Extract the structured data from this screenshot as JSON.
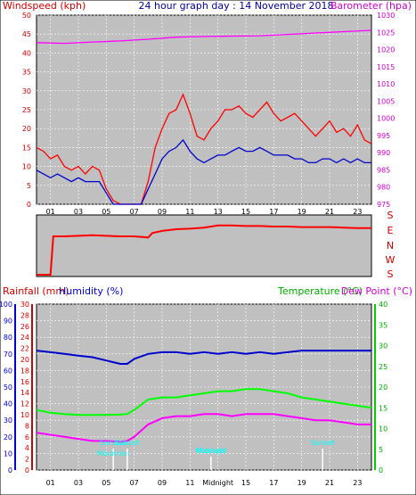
{
  "header": {
    "left_label": "Windspeed (kph)",
    "center_title": "24 hour graph day : 14 November 2018",
    "right_label": "Barometer (hpa)"
  },
  "direction_labels": [
    "S",
    "E",
    "N",
    "W",
    "S"
  ],
  "lower_header": {
    "rainfall_label": "Rainfall (mm)",
    "humidity_label": "Humidity (%)",
    "temperature_label": "Temperature (°C)",
    "dewpoint_label": "Dew Point (°C)"
  },
  "colors": {
    "plot_bg": "#c0c0c0",
    "wind_gust": "#ff0000",
    "wind_avg": "#0000cc",
    "barometer": "#ff00ff",
    "direction": "#ff0000",
    "humidity": "#0000cc",
    "temperature": "#00ff00",
    "dewpoint": "#ff00ff",
    "rainfall_axis": "#cc0000",
    "annotation": "#00ffff"
  },
  "chart_data": [
    {
      "type": "line",
      "name": "wind-barometer",
      "x_ticks": [
        "01",
        "03",
        "05",
        "07",
        "09",
        "11",
        "13",
        "15",
        "17",
        "19",
        "21",
        "23"
      ],
      "ylim_left": [
        0,
        50
      ],
      "yticks_left": [
        0,
        5,
        10,
        15,
        20,
        25,
        30,
        35,
        40,
        45,
        50
      ],
      "ylim_right": [
        975,
        1030
      ],
      "yticks_right": [
        975,
        980,
        985,
        990,
        995,
        1000,
        1005,
        1010,
        1015,
        1020,
        1025,
        1030
      ],
      "grid": true,
      "series": [
        {
          "name": "Windspeed gust",
          "axis": "left",
          "x": [
            0,
            0.5,
            1,
            1.5,
            2,
            2.5,
            3,
            3.5,
            4,
            4.5,
            5,
            5.5,
            6,
            6.5,
            7,
            7.5,
            8,
            8.5,
            9,
            9.5,
            10,
            10.5,
            11,
            11.5,
            12,
            12.5,
            13,
            13.5,
            14,
            14.5,
            15,
            15.5,
            16,
            16.5,
            17,
            17.5,
            18,
            18.5,
            19,
            19.5,
            20,
            20.5,
            21,
            21.5,
            22,
            22.5,
            23,
            23.5,
            24
          ],
          "values": [
            15,
            14,
            12,
            13,
            10,
            9,
            10,
            8,
            10,
            9,
            4,
            1,
            0,
            0,
            0,
            0,
            6,
            15,
            20,
            24,
            25,
            29,
            24,
            18,
            17,
            20,
            22,
            25,
            25,
            26,
            24,
            23,
            25,
            27,
            24,
            22,
            23,
            24,
            22,
            20,
            18,
            20,
            22,
            19,
            20,
            18,
            21,
            17,
            16
          ]
        },
        {
          "name": "Windspeed average",
          "axis": "left",
          "x": [
            0,
            0.5,
            1,
            1.5,
            2,
            2.5,
            3,
            3.5,
            4,
            4.5,
            5,
            5.5,
            6,
            6.5,
            7,
            7.5,
            8,
            8.5,
            9,
            9.5,
            10,
            10.5,
            11,
            11.5,
            12,
            12.5,
            13,
            13.5,
            14,
            14.5,
            15,
            15.5,
            16,
            16.5,
            17,
            17.5,
            18,
            18.5,
            19,
            19.5,
            20,
            20.5,
            21,
            21.5,
            22,
            22.5,
            23,
            23.5,
            24
          ],
          "values": [
            9,
            8,
            7,
            8,
            7,
            6,
            7,
            6,
            6,
            6,
            3,
            0,
            0,
            0,
            0,
            0,
            4,
            8,
            12,
            14,
            15,
            17,
            14,
            12,
            11,
            12,
            13,
            13,
            14,
            15,
            14,
            14,
            15,
            14,
            13,
            13,
            13,
            12,
            12,
            11,
            11,
            12,
            12,
            11,
            12,
            11,
            12,
            11,
            11
          ]
        },
        {
          "name": "Barometer",
          "axis": "right",
          "x": [
            0,
            2,
            4,
            6,
            8,
            10,
            12,
            14,
            16,
            18,
            20,
            22,
            24
          ],
          "values": [
            1022,
            1021.8,
            1022.2,
            1022.5,
            1023,
            1023.6,
            1023.8,
            1023.9,
            1024,
            1024.4,
            1024.8,
            1025.2,
            1025.6
          ]
        }
      ]
    },
    {
      "type": "line",
      "name": "wind-direction",
      "y_labels": [
        "S",
        "E",
        "N",
        "W",
        "S"
      ],
      "x": [
        0,
        0.3,
        0.7,
        1.0,
        1.2,
        2,
        3,
        4,
        5,
        6,
        7,
        8,
        8.3,
        9,
        10,
        11,
        12,
        13,
        14,
        15,
        16,
        17,
        18,
        19,
        20,
        21,
        22,
        23,
        24
      ],
      "values_deg": [
        0,
        0,
        0,
        0,
        70,
        70,
        71,
        72,
        71,
        70,
        70,
        68,
        76,
        80,
        83,
        84,
        86,
        90,
        90,
        89,
        89,
        88,
        88,
        87,
        87,
        87,
        86,
        85,
        85
      ]
    },
    {
      "type": "line",
      "name": "humidity-temperature",
      "ylim_humidity": [
        0,
        100
      ],
      "yticks_humidity": [
        0,
        10,
        20,
        30,
        40,
        50,
        60,
        70,
        80,
        90,
        100
      ],
      "ylim_rainfall": [
        0,
        30
      ],
      "yticks_rainfall": [
        0,
        2,
        4,
        6,
        8,
        10,
        12,
        14,
        16,
        18,
        20,
        22,
        24,
        26,
        28,
        30
      ],
      "ylim_temperature": [
        0,
        40
      ],
      "yticks_temperature": [
        0,
        5,
        10,
        15,
        20,
        25,
        30,
        35,
        40
      ],
      "grid": true,
      "series": [
        {
          "name": "Humidity",
          "axis": "humidity",
          "x": [
            0,
            1,
            2,
            3,
            4,
            5,
            6,
            6.5,
            7,
            8,
            9,
            10,
            11,
            12,
            13,
            14,
            15,
            16,
            17,
            18,
            19,
            20,
            21,
            22,
            23,
            24
          ],
          "values": [
            72,
            71,
            70,
            69,
            68,
            66,
            64,
            64,
            67,
            70,
            71,
            71,
            70,
            71,
            70,
            71,
            70,
            71,
            70,
            71,
            72,
            72,
            72,
            72,
            72,
            72
          ]
        },
        {
          "name": "Temperature",
          "axis": "temperature",
          "x": [
            0,
            1,
            2,
            3,
            4,
            5,
            6,
            6.5,
            7,
            8,
            9,
            10,
            11,
            12,
            13,
            14,
            15,
            16,
            17,
            18,
            19,
            20,
            21,
            22,
            23,
            24
          ],
          "values": [
            14.5,
            13.8,
            13.5,
            13.3,
            13.3,
            13.3,
            13.4,
            13.5,
            14.5,
            17,
            17.5,
            17.5,
            18,
            18.5,
            19,
            19,
            19.5,
            19.5,
            19,
            18.5,
            17.5,
            17,
            16.5,
            16,
            15.5,
            15
          ]
        },
        {
          "name": "Dew Point",
          "axis": "temperature",
          "x": [
            0,
            1,
            2,
            3,
            4,
            5,
            6,
            6.5,
            7,
            8,
            9,
            10,
            11,
            12,
            13,
            14,
            15,
            16,
            17,
            18,
            19,
            20,
            21,
            22,
            23,
            24
          ],
          "values": [
            9,
            8.5,
            8,
            7.5,
            7,
            7,
            6.8,
            7,
            8,
            11,
            12.5,
            13,
            13,
            13.5,
            13.5,
            13,
            13.5,
            13.5,
            13.5,
            13,
            12.5,
            12,
            12,
            11.5,
            11,
            11
          ]
        }
      ],
      "annotations": [
        {
          "label": "Sunrise",
          "x": 5.5
        },
        {
          "label": "Moonrise",
          "x": 5.5
        },
        {
          "label": "Sunset",
          "x": 6.5
        },
        {
          "label": "Moonset",
          "x": 12.5
        },
        {
          "label": "Midnight",
          "x": 12.5
        },
        {
          "label": "Sunset",
          "x": 20.5
        }
      ],
      "x_ticks": [
        "01",
        "03",
        "05",
        "07",
        "09",
        "11",
        "Midnight",
        "15",
        "17",
        "19",
        "21",
        "23"
      ]
    }
  ]
}
